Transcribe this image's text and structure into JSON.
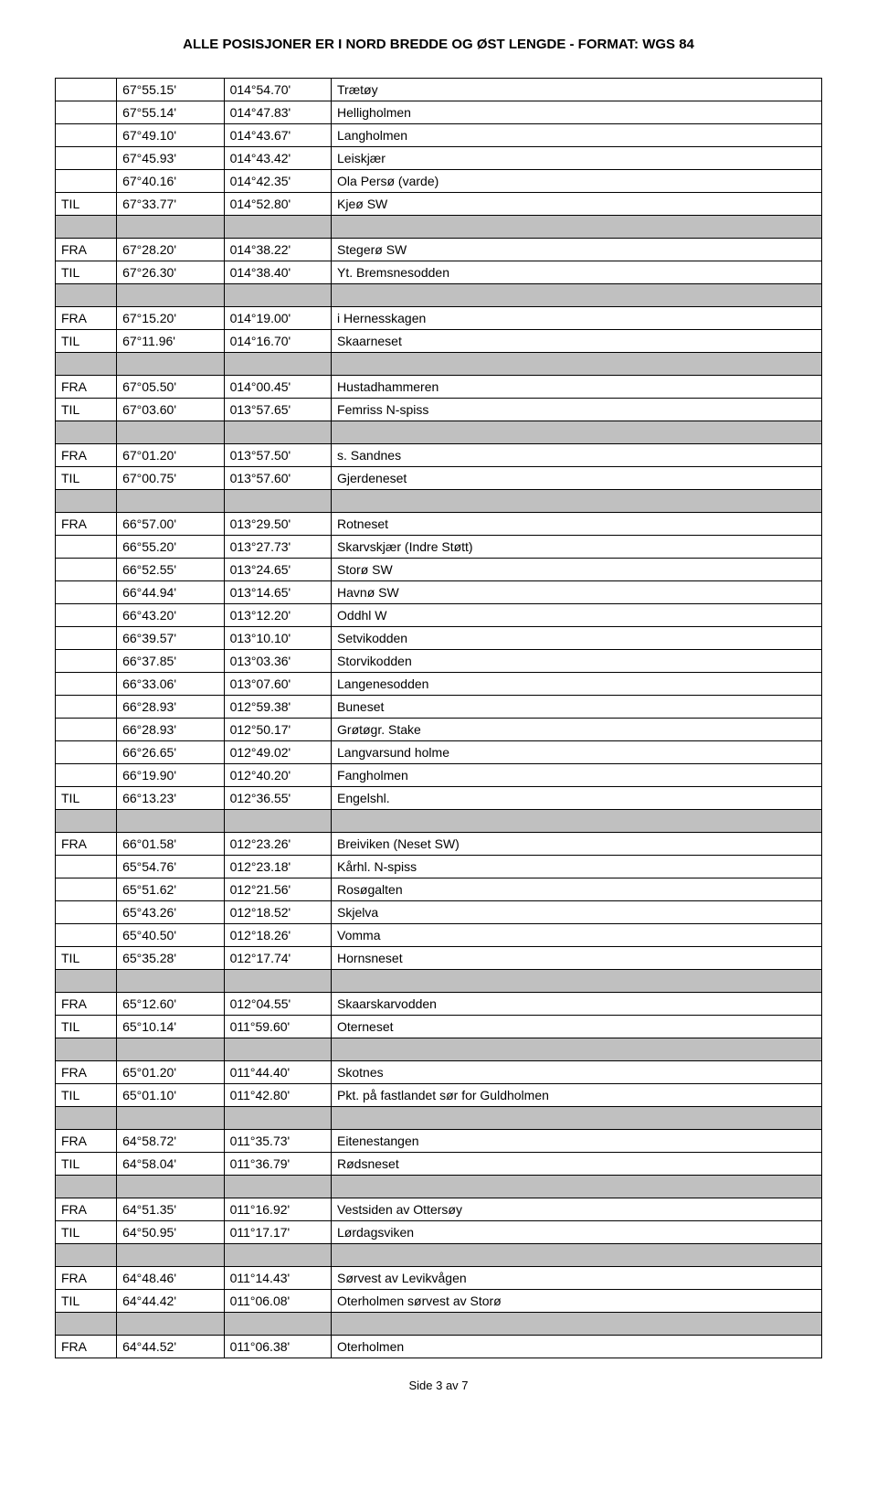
{
  "header": "ALLE POSISJONER ER I NORD BREDDE OG ØST LENGDE - FORMAT: WGS 84",
  "footer": "Side 3 av 7",
  "spacer_color": "#c0c0c0",
  "rows": [
    {
      "c0": "",
      "c1": "67°55.15'",
      "c2": "014°54.70'",
      "c3": "Trætøy"
    },
    {
      "c0": "",
      "c1": "67°55.14'",
      "c2": "014°47.83'",
      "c3": "Helligholmen"
    },
    {
      "c0": "",
      "c1": "67°49.10'",
      "c2": "014°43.67'",
      "c3": "Langholmen"
    },
    {
      "c0": "",
      "c1": "67°45.93'",
      "c2": "014°43.42'",
      "c3": "Leiskjær"
    },
    {
      "c0": "",
      "c1": "67°40.16'",
      "c2": "014°42.35'",
      "c3": "Ola Persø (varde)"
    },
    {
      "c0": "TIL",
      "c1": "67°33.77'",
      "c2": "014°52.80'",
      "c3": "Kjeø SW"
    },
    {
      "spacer": true
    },
    {
      "c0": "FRA",
      "c1": "67°28.20'",
      "c2": "014°38.22'",
      "c3": "Stegerø SW"
    },
    {
      "c0": "TIL",
      "c1": "67°26.30'",
      "c2": "014°38.40'",
      "c3": "Yt. Bremsnesodden"
    },
    {
      "spacer": true
    },
    {
      "c0": "FRA",
      "c1": "67°15.20'",
      "c2": "014°19.00'",
      "c3": "i Hernesskagen"
    },
    {
      "c0": "TIL",
      "c1": "67°11.96'",
      "c2": "014°16.70'",
      "c3": "Skaarneset"
    },
    {
      "spacer": true
    },
    {
      "c0": "FRA",
      "c1": "67°05.50'",
      "c2": "014°00.45'",
      "c3": "Hustadhammeren"
    },
    {
      "c0": "TIL",
      "c1": "67°03.60'",
      "c2": "013°57.65'",
      "c3": "Femriss N-spiss"
    },
    {
      "spacer": true
    },
    {
      "c0": "FRA",
      "c1": "67°01.20'",
      "c2": "013°57.50'",
      "c3": "s. Sandnes"
    },
    {
      "c0": "TIL",
      "c1": "67°00.75'",
      "c2": "013°57.60'",
      "c3": "Gjerdeneset"
    },
    {
      "spacer": true
    },
    {
      "c0": "FRA",
      "c1": "66°57.00'",
      "c2": "013°29.50'",
      "c3": "Rotneset"
    },
    {
      "c0": "",
      "c1": "66°55.20'",
      "c2": "013°27.73'",
      "c3": "Skarvskjær (Indre Støtt)"
    },
    {
      "c0": "",
      "c1": "66°52.55'",
      "c2": "013°24.65'",
      "c3": "Storø SW"
    },
    {
      "c0": "",
      "c1": "66°44.94'",
      "c2": "013°14.65'",
      "c3": "Havnø SW"
    },
    {
      "c0": "",
      "c1": "66°43.20'",
      "c2": "013°12.20'",
      "c3": "Oddhl W"
    },
    {
      "c0": "",
      "c1": "66°39.57'",
      "c2": "013°10.10'",
      "c3": "Setvikodden"
    },
    {
      "c0": "",
      "c1": "66°37.85'",
      "c2": "013°03.36'",
      "c3": "Storvikodden"
    },
    {
      "c0": "",
      "c1": "66°33.06'",
      "c2": "013°07.60'",
      "c3": "Langenesodden"
    },
    {
      "c0": "",
      "c1": "66°28.93'",
      "c2": "012°59.38'",
      "c3": "Buneset"
    },
    {
      "c0": "",
      "c1": "66°28.93'",
      "c2": "012°50.17'",
      "c3": "Grøtøgr. Stake"
    },
    {
      "c0": "",
      "c1": "66°26.65'",
      "c2": "012°49.02'",
      "c3": "Langvarsund holme"
    },
    {
      "c0": "",
      "c1": "66°19.90'",
      "c2": "012°40.20'",
      "c3": "Fangholmen"
    },
    {
      "c0": "TIL",
      "c1": "66°13.23'",
      "c2": "012°36.55'",
      "c3": "Engelshl."
    },
    {
      "spacer": true
    },
    {
      "c0": "FRA",
      "c1": "66°01.58'",
      "c2": "012°23.26'",
      "c3": "Breiviken (Neset SW)"
    },
    {
      "c0": "",
      "c1": "65°54.76'",
      "c2": "012°23.18'",
      "c3": "Kårhl. N-spiss"
    },
    {
      "c0": "",
      "c1": "65°51.62'",
      "c2": "012°21.56'",
      "c3": "Rosøgalten"
    },
    {
      "c0": "",
      "c1": "65°43.26'",
      "c2": "012°18.52'",
      "c3": "Skjelva"
    },
    {
      "c0": "",
      "c1": "65°40.50'",
      "c2": "012°18.26'",
      "c3": "Vomma"
    },
    {
      "c0": "TIL",
      "c1": "65°35.28'",
      "c2": "012°17.74'",
      "c3": "Hornsneset"
    },
    {
      "spacer": true
    },
    {
      "c0": "FRA",
      "c1": "65°12.60'",
      "c2": "012°04.55'",
      "c3": "Skaarskarvodden"
    },
    {
      "c0": "TIL",
      "c1": "65°10.14'",
      "c2": "011°59.60'",
      "c3": "Oterneset"
    },
    {
      "spacer": true
    },
    {
      "c0": "FRA",
      "c1": "65°01.20'",
      "c2": "011°44.40'",
      "c3": "Skotnes"
    },
    {
      "c0": "TIL",
      "c1": "65°01.10'",
      "c2": "011°42.80'",
      "c3": "Pkt. på fastlandet sør for Guldholmen"
    },
    {
      "spacer": true
    },
    {
      "c0": "FRA",
      "c1": "64°58.72'",
      "c2": "011°35.73'",
      "c3": "Eitenestangen"
    },
    {
      "c0": "TIL",
      "c1": "64°58.04'",
      "c2": "011°36.79'",
      "c3": "Rødsneset"
    },
    {
      "spacer": true
    },
    {
      "c0": "FRA",
      "c1": "64°51.35'",
      "c2": "011°16.92'",
      "c3": "Vestsiden av Ottersøy"
    },
    {
      "c0": "TIL",
      "c1": "64°50.95'",
      "c2": "011°17.17'",
      "c3": "Lørdagsviken"
    },
    {
      "spacer": true
    },
    {
      "c0": "FRA",
      "c1": "64°48.46'",
      "c2": "011°14.43'",
      "c3": "Sørvest av Levikvågen"
    },
    {
      "c0": "TIL",
      "c1": "64°44.42'",
      "c2": "011°06.08'",
      "c3": "Oterholmen sørvest av Storø"
    },
    {
      "spacer": true
    },
    {
      "c0": "FRA",
      "c1": "64°44.52'",
      "c2": "011°06.38'",
      "c3": "Oterholmen"
    }
  ]
}
